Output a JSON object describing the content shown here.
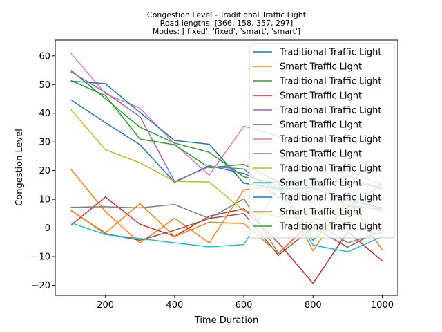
{
  "chart_data": {
    "type": "line",
    "title_lines": [
      "Congestion Level - Traditional Traffic Light",
      "Road lengths: [366, 158, 357, 297]",
      "Modes: ['fixed', 'fixed', 'smart', 'smart']"
    ],
    "xlabel": "Time Duration",
    "ylabel": "Congestion Level",
    "xlim": [
      55,
      1045
    ],
    "ylim": [
      -23.5,
      65.5
    ],
    "xticks": [
      200,
      400,
      600,
      800,
      1000
    ],
    "yticks": [
      -20,
      -10,
      0,
      10,
      20,
      30,
      40,
      50,
      60
    ],
    "x": [
      100,
      200,
      300,
      400,
      500,
      600,
      700,
      800,
      900,
      1000
    ],
    "legend_position": "upper right",
    "series": [
      {
        "name": "Traditional Traffic Light",
        "color": "#1f77b4",
        "values": [
          44.7,
          36.7,
          29.0,
          15.9,
          21.7,
          19.0,
          13.5,
          17.5,
          7.6,
          6.5
        ]
      },
      {
        "name": "Smart Traffic Light",
        "color": "#ff7f0e",
        "values": [
          20.6,
          5.7,
          -5.3,
          3.4,
          -5.2,
          13.3,
          14.9,
          -8.0,
          10.3,
          -7.7
        ]
      },
      {
        "name": "Traditional Traffic Light",
        "color": "#2ca02c",
        "values": [
          55.0,
          45.1,
          35.1,
          29.6,
          26.4,
          17.8,
          15.6,
          -4.3,
          7.3,
          15.3
        ]
      },
      {
        "name": "Smart Traffic Light",
        "color": "#d62728",
        "values": [
          0.9,
          10.8,
          1.3,
          -2.9,
          4.1,
          6.7,
          -5.2,
          -19.3,
          -1.3,
          -11.5
        ]
      },
      {
        "name": "Traditional Traffic Light",
        "color": "#9467bd",
        "values": [
          54.5,
          47.3,
          38.8,
          16.2,
          21.4,
          20.6,
          10.5,
          13.2,
          18.4,
          13.3
        ]
      },
      {
        "name": "Smart Traffic Light",
        "color": "#8c564b",
        "values": [
          6.2,
          -2.0,
          -4.3,
          -0.8,
          3.3,
          5.0,
          -9.5,
          0.2,
          -6.7,
          -0.5
        ]
      },
      {
        "name": "Traditional Traffic Light",
        "color": "#e377c2",
        "values": [
          61.0,
          46.8,
          41.8,
          29.3,
          18.4,
          35.5,
          32.0,
          24.0,
          20.0,
          15.0
        ]
      },
      {
        "name": "Smart Traffic Light",
        "color": "#7f7f7f",
        "values": [
          7.2,
          7.4,
          7.0,
          8.2,
          3.3,
          10.2,
          -8.9,
          2.5,
          -5.2,
          -1.5
        ]
      },
      {
        "name": "Traditional Traffic Light",
        "color": "#bcbd22",
        "values": [
          41.3,
          27.3,
          22.7,
          16.3,
          16.0,
          6.0,
          4.0,
          3.0,
          8.3,
          6.0
        ]
      },
      {
        "name": "Smart Traffic Light",
        "color": "#17becf",
        "values": [
          1.8,
          -2.3,
          -3.7,
          -5.2,
          -6.6,
          -5.8,
          14.3,
          -6.0,
          -8.3,
          -3.0
        ]
      },
      {
        "name": "Traditional Traffic Light",
        "color": "#1f77b4",
        "values": [
          51.2,
          50.3,
          40.3,
          30.5,
          29.2,
          15.6,
          13.6,
          14.0,
          9.6,
          7.0
        ]
      },
      {
        "name": "Smart Traffic Light",
        "color": "#ff7f0e",
        "values": [
          6.1,
          -1.7,
          8.5,
          -3.0,
          2.0,
          1.5,
          -8.8,
          3.0,
          2.0,
          0.9
        ]
      },
      {
        "name": "Traditional Traffic Light",
        "color": "#2ca02c",
        "values": [
          51.4,
          46.2,
          31.0,
          29.0,
          21.0,
          22.2,
          16.0,
          15.7,
          16.3,
          14.0
        ]
      }
    ]
  }
}
